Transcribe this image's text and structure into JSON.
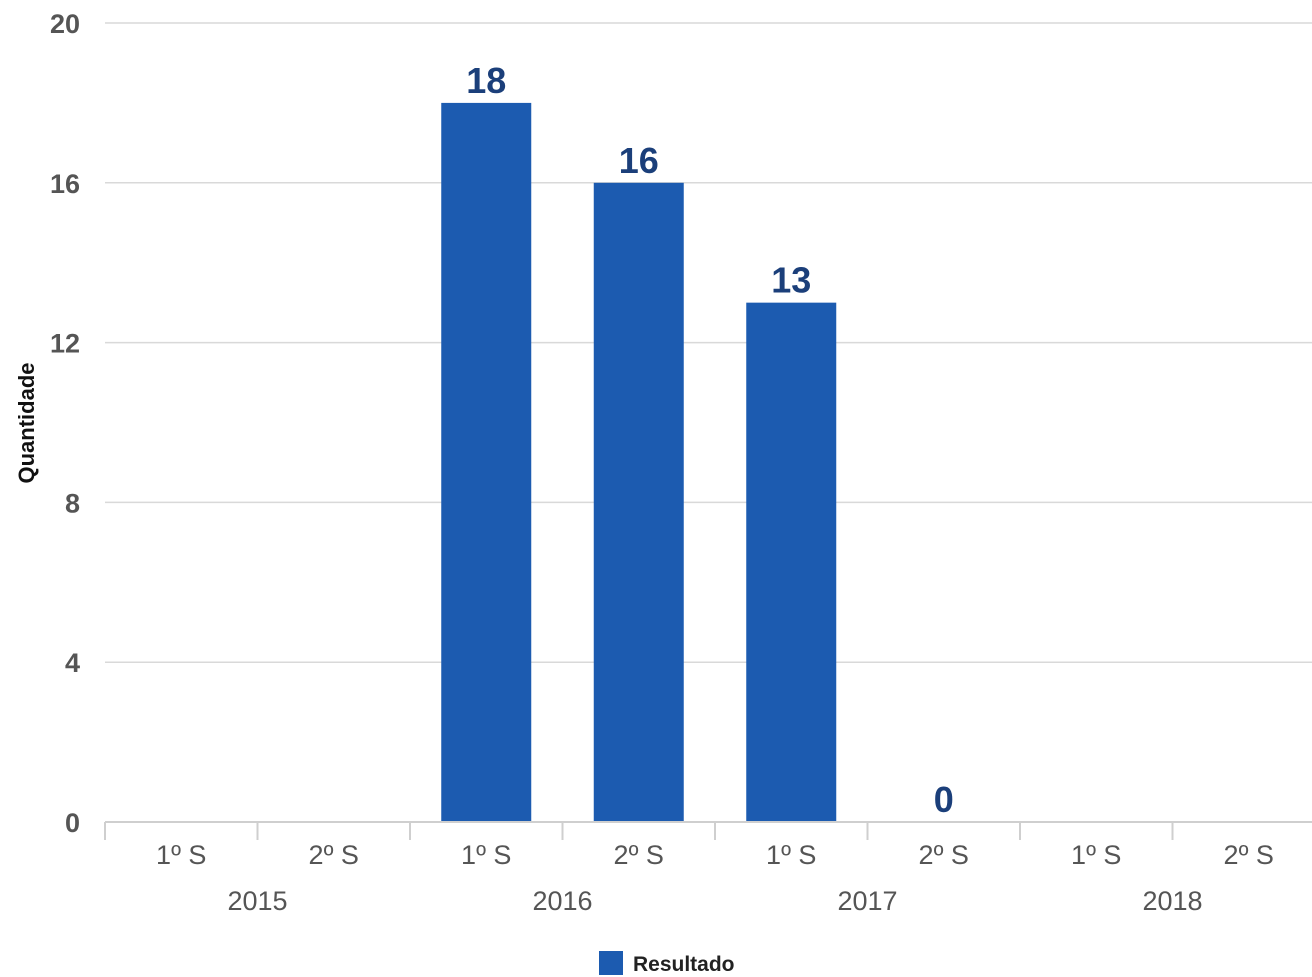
{
  "chart_data": {
    "type": "bar",
    "ylabel": "Quantidade",
    "ylim": [
      0,
      20
    ],
    "yticks": [
      0,
      4,
      8,
      12,
      16,
      20
    ],
    "categories": [
      "1º S",
      "2º S",
      "1º S",
      "2º S",
      "1º S",
      "2º S",
      "1º S",
      "2º S"
    ],
    "groups": [
      {
        "label": "2015",
        "count": 2
      },
      {
        "label": "2016",
        "count": 2
      },
      {
        "label": "2017",
        "count": 2
      },
      {
        "label": "2018",
        "count": 2
      }
    ],
    "series": [
      {
        "name": "Resultado",
        "color": "#1c5bb0",
        "values": [
          null,
          null,
          18,
          16,
          13,
          0,
          null,
          null
        ],
        "data_labels": [
          "",
          "",
          "18",
          "16",
          "13",
          "0",
          "",
          ""
        ]
      }
    ],
    "grid": true,
    "legend": "bottom-center"
  }
}
